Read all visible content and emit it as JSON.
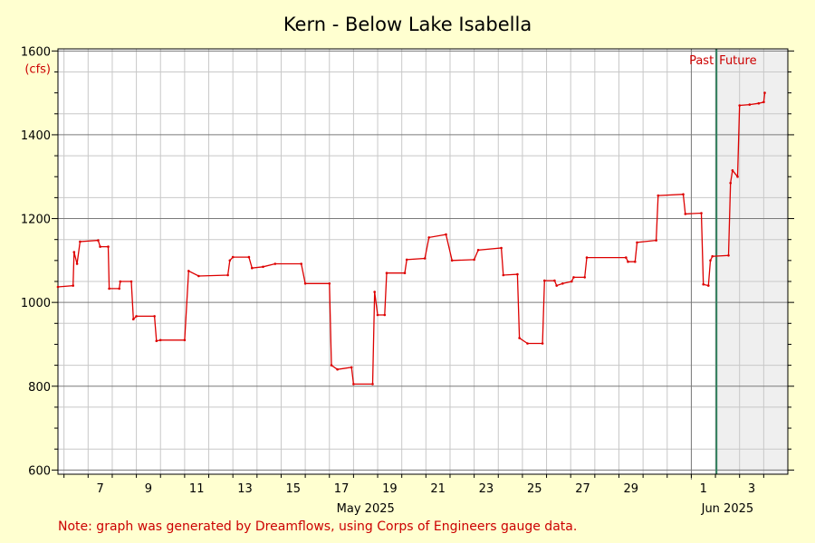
{
  "chart_data": {
    "type": "line",
    "title": "Kern - Below Lake Isabella",
    "y_unit": "(cfs)",
    "ylim": [
      590,
      1605
    ],
    "xlim": [
      "2025-05-05T18:00",
      "2025-06-05T00:00"
    ],
    "y_ticks": [
      "600",
      "800",
      "1000",
      "1200",
      "1400",
      "1600"
    ],
    "x_day_labels": [
      "7",
      "9",
      "11",
      "13",
      "15",
      "17",
      "19",
      "21",
      "23",
      "25",
      "27",
      "29",
      "1",
      "3"
    ],
    "month_labels": [
      "May 2025",
      "Jun 2025"
    ],
    "past_label": "Past",
    "future_label": "Future",
    "now": "2025-06-02T01:00",
    "grid": true,
    "series": [
      {
        "color": "#dd0000",
        "points": [
          [
            "2025-05-05T18:00",
            1037
          ],
          [
            "2025-05-06T09:00",
            1040
          ],
          [
            "2025-05-06T10:00",
            1120
          ],
          [
            "2025-05-06T13:00",
            1092
          ],
          [
            "2025-05-06T16:00",
            1145
          ],
          [
            "2025-05-07T10:00",
            1148
          ],
          [
            "2025-05-07T12:00",
            1133
          ],
          [
            "2025-05-07T20:00",
            1133
          ],
          [
            "2025-05-07T21:00",
            1033
          ],
          [
            "2025-05-08T07:00",
            1033
          ],
          [
            "2025-05-08T08:00",
            1050
          ],
          [
            "2025-05-08T19:00",
            1050
          ],
          [
            "2025-05-08T21:00",
            960
          ],
          [
            "2025-05-09T00:00",
            967
          ],
          [
            "2025-05-09T18:00",
            967
          ],
          [
            "2025-05-09T20:00",
            908
          ],
          [
            "2025-05-10T00:00",
            910
          ],
          [
            "2025-05-11T00:00",
            910
          ],
          [
            "2025-05-11T04:00",
            1075
          ],
          [
            "2025-05-11T14:00",
            1063
          ],
          [
            "2025-05-12T19:00",
            1065
          ],
          [
            "2025-05-12T21:00",
            1100
          ],
          [
            "2025-05-13T00:00",
            1108
          ],
          [
            "2025-05-13T16:00",
            1108
          ],
          [
            "2025-05-13T19:00",
            1082
          ],
          [
            "2025-05-14T06:00",
            1085
          ],
          [
            "2025-05-14T18:00",
            1092
          ],
          [
            "2025-05-15T20:00",
            1092
          ],
          [
            "2025-05-16T00:00",
            1045
          ],
          [
            "2025-05-17T00:00",
            1045
          ],
          [
            "2025-05-17T02:00",
            850
          ],
          [
            "2025-05-17T08:00",
            840
          ],
          [
            "2025-05-17T22:00",
            845
          ],
          [
            "2025-05-18T00:00",
            805
          ],
          [
            "2025-05-18T19:00",
            805
          ],
          [
            "2025-05-18T21:00",
            1025
          ],
          [
            "2025-05-19T00:00",
            970
          ],
          [
            "2025-05-19T07:00",
            970
          ],
          [
            "2025-05-19T09:00",
            1070
          ],
          [
            "2025-05-20T03:00",
            1070
          ],
          [
            "2025-05-20T05:00",
            1102
          ],
          [
            "2025-05-20T23:00",
            1105
          ],
          [
            "2025-05-21T03:00",
            1155
          ],
          [
            "2025-05-21T20:00",
            1162
          ],
          [
            "2025-05-22T02:00",
            1100
          ],
          [
            "2025-05-23T00:00",
            1102
          ],
          [
            "2025-05-23T04:00",
            1125
          ],
          [
            "2025-05-24T03:00",
            1130
          ],
          [
            "2025-05-24T05:00",
            1065
          ],
          [
            "2025-05-24T19:00",
            1067
          ],
          [
            "2025-05-24T21:00",
            915
          ],
          [
            "2025-05-25T05:00",
            902
          ],
          [
            "2025-05-25T20:00",
            902
          ],
          [
            "2025-05-25T22:00",
            1052
          ],
          [
            "2025-05-26T08:00",
            1052
          ],
          [
            "2025-05-26T10:00",
            1040
          ],
          [
            "2025-05-26T16:00",
            1045
          ],
          [
            "2025-05-27T01:00",
            1050
          ],
          [
            "2025-05-27T03:00",
            1060
          ],
          [
            "2025-05-27T14:00",
            1060
          ],
          [
            "2025-05-27T16:00",
            1107
          ],
          [
            "2025-05-29T07:00",
            1107
          ],
          [
            "2025-05-29T09:00",
            1097
          ],
          [
            "2025-05-29T16:00",
            1097
          ],
          [
            "2025-05-29T18:00",
            1143
          ],
          [
            "2025-05-30T13:00",
            1148
          ],
          [
            "2025-05-30T15:00",
            1255
          ],
          [
            "2025-05-31T16:00",
            1258
          ],
          [
            "2025-05-31T18:00",
            1211
          ],
          [
            "2025-06-01T10:00",
            1213
          ],
          [
            "2025-06-01T12:00",
            1043
          ],
          [
            "2025-06-01T17:00",
            1040
          ],
          [
            "2025-06-01T19:00",
            1100
          ],
          [
            "2025-06-01T21:00",
            1110
          ],
          [
            "2025-06-02T13:00",
            1112
          ],
          [
            "2025-06-02T15:00",
            1285
          ],
          [
            "2025-06-02T17:00",
            1315
          ],
          [
            "2025-06-02T22:00",
            1300
          ],
          [
            "2025-06-03T00:00",
            1470
          ],
          [
            "2025-06-03T10:00",
            1472
          ],
          [
            "2025-06-03T19:00",
            1475
          ],
          [
            "2025-06-04T00:00",
            1478
          ],
          [
            "2025-06-04T01:00",
            1500
          ]
        ]
      }
    ]
  },
  "footer": {
    "note": "Note: graph was generated by Dreamflows, using Corps of Engineers gauge data."
  },
  "colors": {
    "background": "#ffffd0",
    "plot_area": "#ffffff",
    "future_area": "#efefef",
    "line": "#dd0000",
    "now_line": "#2e7d5b"
  }
}
